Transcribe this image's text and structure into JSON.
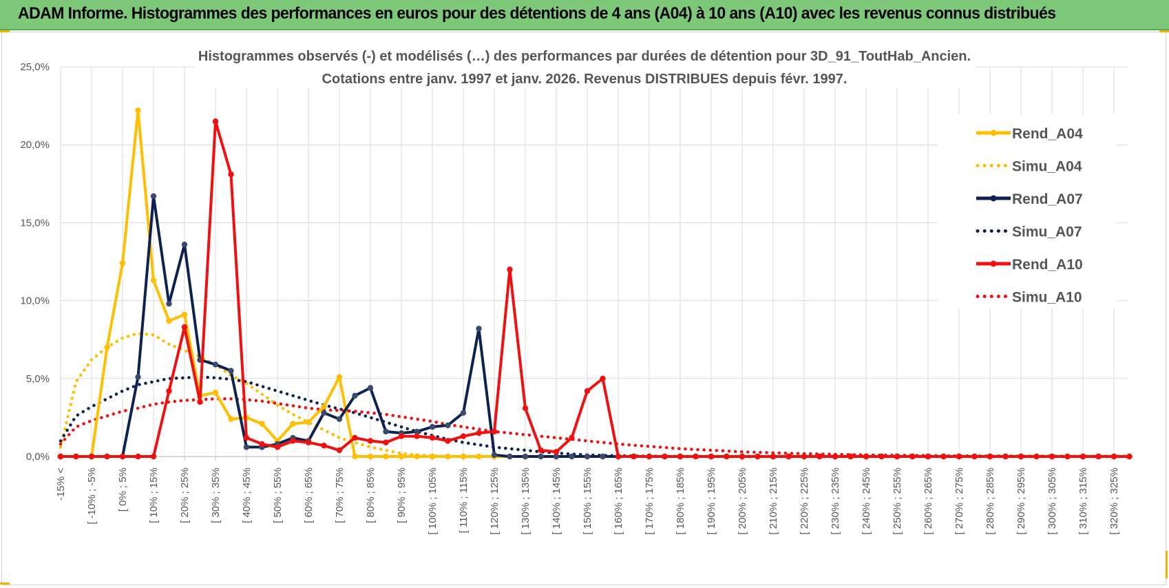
{
  "header": {
    "title": "ADAM Informe. Histogrammes des performances en euros pour des détentions de 4 ans (A04) à 10 ans (A10) avec les revenus connus distribués"
  },
  "colors": {
    "banner": "#7ec87a",
    "A04": "#ffbf00",
    "A07": "#0e2250",
    "A10": "#f01010",
    "grid": "#d9d9d9"
  },
  "chart_data": {
    "type": "line",
    "title": "Histogrammes observés (-) et modélisés (…) des performances par durées de détention pour 3D_91_ToutHab_Ancien.",
    "subtitle": "Cotations entre janv. 1997 et janv. 2026. Revenus DISTRIBUES depuis févr. 1997.",
    "xlabel": "",
    "ylabel": "",
    "ylim": [
      0,
      25
    ],
    "yticks": [
      0,
      5,
      10,
      15,
      20,
      25
    ],
    "ytick_labels": [
      "0,0%",
      "5,0%",
      "10,0%",
      "15,0%",
      "20,0%",
      "25,0%"
    ],
    "grid": true,
    "legend_position": "right",
    "x_labels": [
      "-15% <",
      "[ -10% ; -5%",
      "[ 0% ; 5%",
      "[ 10% ; 15%",
      "[ 20% ; 25%",
      "[ 30% ; 35%",
      "[ 40% ; 45%",
      "[ 50% ; 55%",
      "[ 60% ; 65%",
      "[ 70% ; 75%",
      "[ 80% ; 85%",
      "[ 90% ; 95%",
      "[ 100% ; 105%",
      "[ 110% ; 115%",
      "[ 120% ; 125%",
      "[ 130% ; 135%",
      "[ 140% ; 145%",
      "[ 150% ; 155%",
      "[ 160% ; 165%",
      "[ 170% ; 175%",
      "[ 180% ; 185%",
      "[ 190% ; 195%",
      "[ 200% ; 205%",
      "[ 210% ; 215%",
      "[ 220% ; 225%",
      "[ 230% ; 235%",
      "[ 240% ; 245%",
      "[ 250% ; 255%",
      "[ 260% ; 265%",
      "[ 270% ; 275%",
      "[ 280% ; 285%",
      "[ 290% ; 295%",
      "[ 300% ; 305%",
      "[ 310% ; 315%",
      "[ 320% ; 325%"
    ],
    "n_points": 70,
    "series": [
      {
        "name": "Rend_A04",
        "style": "solid",
        "color": "#ffbf00",
        "values": [
          0,
          0,
          0,
          7.0,
          12.4,
          22.2,
          11.3,
          8.7,
          9.1,
          3.9,
          4.1,
          2.4,
          2.5,
          2.1,
          1.0,
          2.1,
          2.2,
          3.2,
          5.1,
          0,
          0,
          0,
          0,
          0,
          0,
          0,
          0,
          0,
          0,
          0,
          0,
          0,
          0,
          0,
          0,
          0,
          0,
          0,
          0,
          0,
          0,
          0,
          0,
          0,
          0,
          0,
          0,
          0,
          0,
          0,
          0,
          0,
          0,
          0,
          0,
          0,
          0,
          0,
          0,
          0,
          0,
          0,
          0,
          0,
          0,
          0,
          0,
          0,
          0,
          0
        ]
      },
      {
        "name": "Simu_A04",
        "style": "dotted",
        "color": "#ffbf00",
        "values": [
          0.6,
          4.8,
          6.2,
          7.0,
          7.6,
          7.9,
          7.8,
          7.2,
          6.8,
          6.4,
          5.9,
          5.2,
          4.7,
          4.0,
          3.3,
          2.7,
          2.2,
          1.7,
          1.2,
          0.9,
          0.6,
          0.4,
          0.2,
          0.1,
          0.05,
          0,
          0,
          0,
          0,
          0,
          0,
          0,
          0,
          0,
          0,
          0,
          0,
          0,
          0,
          0,
          0,
          0,
          0,
          0,
          0,
          0,
          0,
          0,
          0,
          0,
          0,
          0,
          0,
          0,
          0,
          0,
          0,
          0,
          0,
          0,
          0,
          0,
          0,
          0,
          0,
          0,
          0,
          0,
          0,
          0
        ]
      },
      {
        "name": "Rend_A07",
        "style": "solid",
        "color": "#0e2250",
        "values": [
          0,
          0,
          0,
          0,
          0,
          5.1,
          16.7,
          9.8,
          13.6,
          6.2,
          5.9,
          5.5,
          0.6,
          0.6,
          0.8,
          1.2,
          1.0,
          2.8,
          2.4,
          3.9,
          4.4,
          1.6,
          1.5,
          1.6,
          1.9,
          2.0,
          2.8,
          8.2,
          0.1,
          0,
          0,
          0,
          0,
          0,
          0,
          0,
          0,
          0,
          0,
          0,
          0,
          0,
          0,
          0,
          0,
          0,
          0,
          0,
          0,
          0,
          0,
          0,
          0,
          0,
          0,
          0,
          0,
          0,
          0,
          0,
          0,
          0,
          0,
          0,
          0,
          0,
          0,
          0,
          0,
          0
        ]
      },
      {
        "name": "Simu_A07",
        "style": "dotted",
        "color": "#0e2250",
        "values": [
          1.0,
          2.6,
          3.2,
          3.7,
          4.2,
          4.6,
          4.8,
          5.0,
          5.05,
          5.1,
          5.05,
          4.95,
          4.8,
          4.5,
          4.2,
          3.9,
          3.6,
          3.3,
          3.05,
          2.8,
          2.5,
          2.2,
          1.9,
          1.6,
          1.35,
          1.1,
          0.9,
          0.75,
          0.6,
          0.5,
          0.4,
          0.3,
          0.22,
          0.16,
          0.1,
          0.07,
          0.05,
          0.03,
          0.02,
          0.01,
          0,
          0,
          0,
          0,
          0,
          0,
          0,
          0,
          0,
          0,
          0,
          0,
          0,
          0,
          0,
          0,
          0,
          0,
          0,
          0,
          0,
          0,
          0,
          0,
          0,
          0,
          0,
          0,
          0,
          0
        ]
      },
      {
        "name": "Rend_A10",
        "style": "solid",
        "color": "#f01010",
        "values": [
          0,
          0,
          0,
          0,
          0,
          0,
          0,
          4.2,
          8.3,
          3.5,
          21.5,
          18.1,
          1.2,
          0.8,
          0.6,
          1.0,
          0.9,
          0.7,
          0.4,
          1.2,
          1.0,
          0.9,
          1.3,
          1.3,
          1.2,
          1.0,
          1.3,
          1.5,
          1.6,
          12.0,
          3.1,
          0.4,
          0.3,
          1.2,
          4.2,
          5.0,
          0,
          0,
          0,
          0,
          0,
          0,
          0,
          0,
          0,
          0,
          0,
          0,
          0,
          0,
          0,
          0,
          0,
          0,
          0,
          0,
          0,
          0,
          0,
          0,
          0,
          0,
          0,
          0,
          0,
          0,
          0,
          0,
          0,
          0
        ]
      },
      {
        "name": "Simu_A10",
        "style": "dotted",
        "color": "#f01010",
        "values": [
          0.8,
          1.9,
          2.3,
          2.6,
          2.9,
          3.1,
          3.35,
          3.5,
          3.6,
          3.65,
          3.7,
          3.7,
          3.65,
          3.55,
          3.4,
          3.25,
          3.1,
          3.0,
          2.95,
          2.9,
          2.8,
          2.7,
          2.55,
          2.4,
          2.25,
          2.05,
          1.9,
          1.75,
          1.6,
          1.5,
          1.4,
          1.3,
          1.2,
          1.1,
          1.0,
          0.9,
          0.8,
          0.72,
          0.65,
          0.58,
          0.5,
          0.45,
          0.4,
          0.35,
          0.3,
          0.27,
          0.24,
          0.21,
          0.18,
          0.16,
          0.14,
          0.12,
          0.1,
          0.09,
          0.08,
          0.07,
          0.06,
          0.05,
          0.04,
          0.04,
          0.03,
          0.03,
          0.02,
          0.02,
          0.02,
          0.01,
          0.01,
          0.01,
          0.01,
          0.01
        ]
      }
    ]
  }
}
